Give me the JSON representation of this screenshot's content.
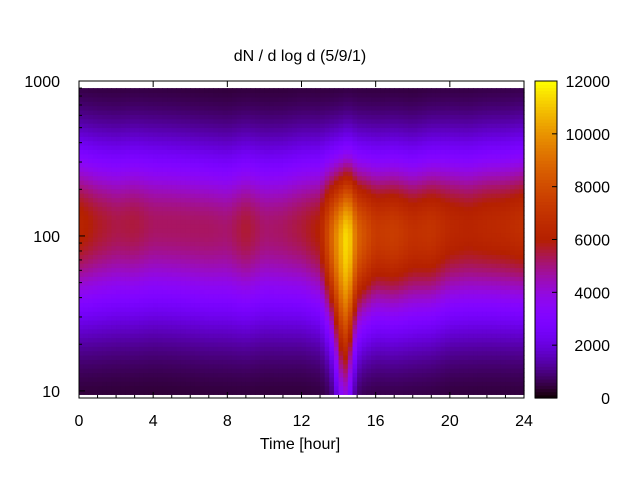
{
  "chart_data": {
    "type": "heatmap",
    "title": "dN / d log d (5/9/1)",
    "xlabel": "Time [hour]",
    "ylabel": "",
    "x_ticks": [
      0,
      4,
      8,
      12,
      16,
      20,
      24
    ],
    "xlim": [
      0,
      24
    ],
    "y_scale": "log",
    "y_ticks": [
      10,
      100,
      1000
    ],
    "ylim": [
      9,
      1000
    ],
    "data_y_range": [
      9.5,
      900
    ],
    "colorbar": {
      "ticks": [
        0,
        2000,
        4000,
        6000,
        8000,
        10000,
        12000
      ],
      "range": [
        0,
        12000
      ],
      "palette": "gnuplot black-purple-red-yellow"
    },
    "time_hours": [
      0,
      1,
      2,
      3,
      4,
      5,
      6,
      7,
      8,
      9,
      10,
      11,
      12,
      13,
      13.5,
      14,
      14.5,
      15,
      16,
      17,
      18,
      19,
      20,
      21,
      22,
      23,
      24
    ],
    "peak_diameter": [
      120,
      118,
      118,
      120,
      120,
      118,
      115,
      112,
      110,
      112,
      112,
      112,
      115,
      110,
      100,
      95,
      95,
      100,
      105,
      105,
      105,
      110,
      115,
      115,
      118,
      118,
      120
    ],
    "peak_value": [
      6000,
      5500,
      5200,
      5300,
      5000,
      5000,
      5000,
      5000,
      4900,
      5400,
      4900,
      5000,
      5300,
      5800,
      8000,
      10000,
      11500,
      8500,
      7000,
      7200,
      6600,
      6800,
      6200,
      6000,
      6200,
      6300,
      6600
    ]
  }
}
